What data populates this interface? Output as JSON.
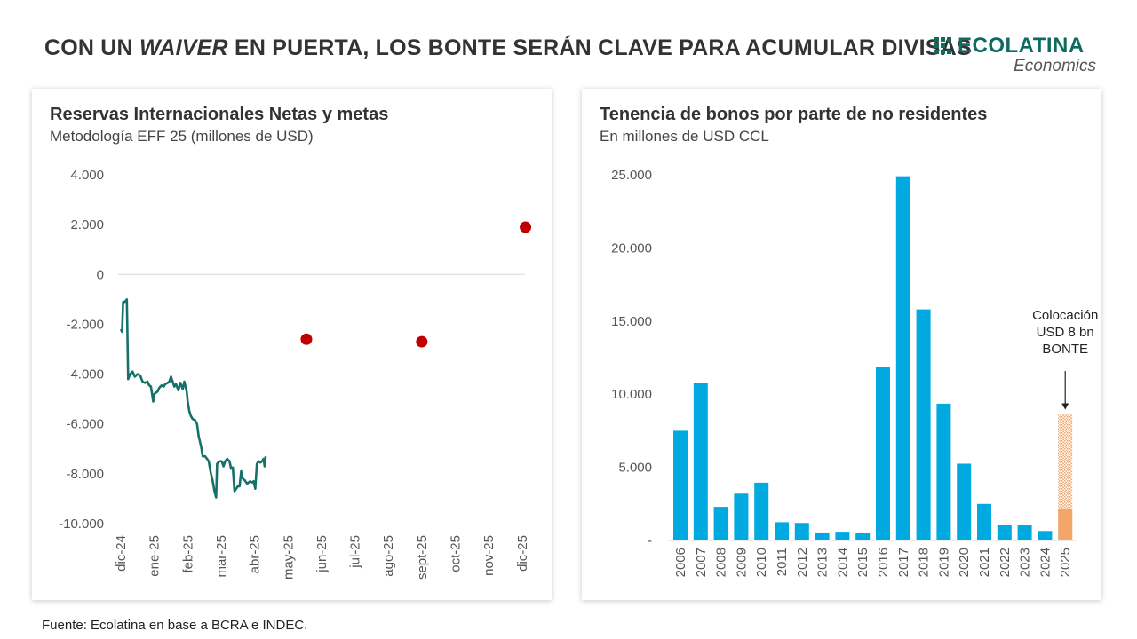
{
  "header": {
    "title_part1": "CON UN ",
    "title_italic": "WAIVER",
    "title_part2": " EN PUERTA, LOS BONTE SERÁN CLAVE PARA ACUMULAR DIVISAS"
  },
  "logo": {
    "name": "ECOLATINA",
    "sub": "Economics",
    "color": "#0f6b5e"
  },
  "footer": {
    "source": "Fuente: Ecolatina en base a BCRA e INDEC."
  },
  "chart_data": [
    {
      "type": "line",
      "title": "Reservas Internacionales Netas y metas",
      "subtitle": "Metodología EFF 25 (millones de USD)",
      "ylim": [
        -10000,
        4000
      ],
      "y_ticks": [
        4000,
        2000,
        0,
        -2000,
        -4000,
        -6000,
        -8000,
        -10000
      ],
      "y_tick_labels": [
        "4.000",
        "2.000",
        "0",
        "-2.000",
        "-4.000",
        "-6.000",
        "-8.000",
        "-10.000"
      ],
      "x_ticks": [
        "dic-24",
        "ene-25",
        "feb-25",
        "mar-25",
        "abr-25",
        "may-25",
        "jun-25",
        "jul-25",
        "ago-25",
        "sept-25",
        "oct-25",
        "nov-25",
        "dic-25"
      ],
      "series": [
        {
          "type": "line",
          "color": "#16716a",
          "points": [
            [
              0.0,
              -2200
            ],
            [
              0.04,
              -2300
            ],
            [
              0.07,
              -1100
            ],
            [
              0.12,
              -1100
            ],
            [
              0.18,
              -1000
            ],
            [
              0.22,
              -4200
            ],
            [
              0.28,
              -4000
            ],
            [
              0.35,
              -3900
            ],
            [
              0.42,
              -4100
            ],
            [
              0.5,
              -4000
            ],
            [
              0.58,
              -4050
            ],
            [
              0.65,
              -4300
            ],
            [
              0.72,
              -4350
            ],
            [
              0.8,
              -4300
            ],
            [
              0.85,
              -4450
            ],
            [
              0.9,
              -4500
            ],
            [
              0.97,
              -5100
            ],
            [
              1.0,
              -4800
            ],
            [
              1.05,
              -4750
            ],
            [
              1.1,
              -4700
            ],
            [
              1.15,
              -4550
            ],
            [
              1.22,
              -4450
            ],
            [
              1.28,
              -4500
            ],
            [
              1.33,
              -4400
            ],
            [
              1.4,
              -4350
            ],
            [
              1.45,
              -4300
            ],
            [
              1.5,
              -4100
            ],
            [
              1.55,
              -4300
            ],
            [
              1.6,
              -4500
            ],
            [
              1.65,
              -4400
            ],
            [
              1.72,
              -4650
            ],
            [
              1.78,
              -4350
            ],
            [
              1.85,
              -4600
            ],
            [
              1.9,
              -4300
            ],
            [
              1.97,
              -4700
            ],
            [
              2.0,
              -5100
            ],
            [
              2.05,
              -5500
            ],
            [
              2.1,
              -5700
            ],
            [
              2.15,
              -5800
            ],
            [
              2.22,
              -5850
            ],
            [
              2.28,
              -6000
            ],
            [
              2.33,
              -6500
            ],
            [
              2.4,
              -6900
            ],
            [
              2.45,
              -7300
            ],
            [
              2.52,
              -7300
            ],
            [
              2.58,
              -7400
            ],
            [
              2.63,
              -7500
            ],
            [
              2.68,
              -7900
            ],
            [
              2.75,
              -8300
            ],
            [
              2.8,
              -8700
            ],
            [
              2.85,
              -8950
            ],
            [
              2.88,
              -7600
            ],
            [
              2.95,
              -7500
            ],
            [
              3.02,
              -7500
            ],
            [
              3.07,
              -7700
            ],
            [
              3.12,
              -7500
            ],
            [
              3.18,
              -7400
            ],
            [
              3.25,
              -7500
            ],
            [
              3.3,
              -7800
            ],
            [
              3.35,
              -7750
            ],
            [
              3.4,
              -8700
            ],
            [
              3.45,
              -8600
            ],
            [
              3.5,
              -8500
            ],
            [
              3.55,
              -8500
            ],
            [
              3.6,
              -7900
            ],
            [
              3.65,
              -8200
            ],
            [
              3.7,
              -8250
            ],
            [
              3.78,
              -8400
            ],
            [
              3.82,
              -8350
            ],
            [
              3.87,
              -8300
            ],
            [
              3.93,
              -8350
            ],
            [
              3.97,
              -8300
            ],
            [
              4.02,
              -8600
            ],
            [
              4.07,
              -7600
            ],
            [
              4.12,
              -7500
            ],
            [
              4.17,
              -7550
            ],
            [
              4.22,
              -7500
            ],
            [
              4.27,
              -7400
            ],
            [
              4.3,
              -7700
            ],
            [
              4.33,
              -7300
            ]
          ]
        },
        {
          "type": "scatter",
          "color": "#c00000",
          "points": [
            [
              5.55,
              -2600
            ],
            [
              9.0,
              -2700
            ],
            [
              12.1,
              1900
            ]
          ]
        }
      ]
    },
    {
      "type": "bar",
      "title": "Tenencia de bonos por parte de no residentes",
      "subtitle": "En millones de USD CCL",
      "ylim": [
        0,
        25000
      ],
      "y_ticks": [
        25000,
        20000,
        15000,
        10000,
        5000,
        0
      ],
      "y_tick_labels": [
        "25.000",
        "20.000",
        "15.000",
        "10.000",
        "5.000",
        "-"
      ],
      "categories": [
        "2006",
        "2007",
        "2008",
        "2009",
        "2010",
        "2011",
        "2012",
        "2013",
        "2014",
        "2015",
        "2016",
        "2017",
        "2018",
        "2019",
        "2020",
        "2021",
        "2022",
        "2023",
        "2024",
        "2025"
      ],
      "values": [
        7500,
        10800,
        2300,
        3200,
        3950,
        1250,
        1200,
        550,
        600,
        500,
        11850,
        24900,
        15800,
        9350,
        5250,
        2500,
        1050,
        1050,
        650,
        2150
      ],
      "bar_color": "#00a9e0",
      "highlight_color": "#f4a56a",
      "projected": {
        "category": "2025",
        "value": 8000,
        "total": 8650,
        "pattern_color": "#f4a56a"
      },
      "annotation": {
        "lines": [
          "Colocación",
          "USD 8 bn",
          "BONTE"
        ]
      }
    }
  ]
}
